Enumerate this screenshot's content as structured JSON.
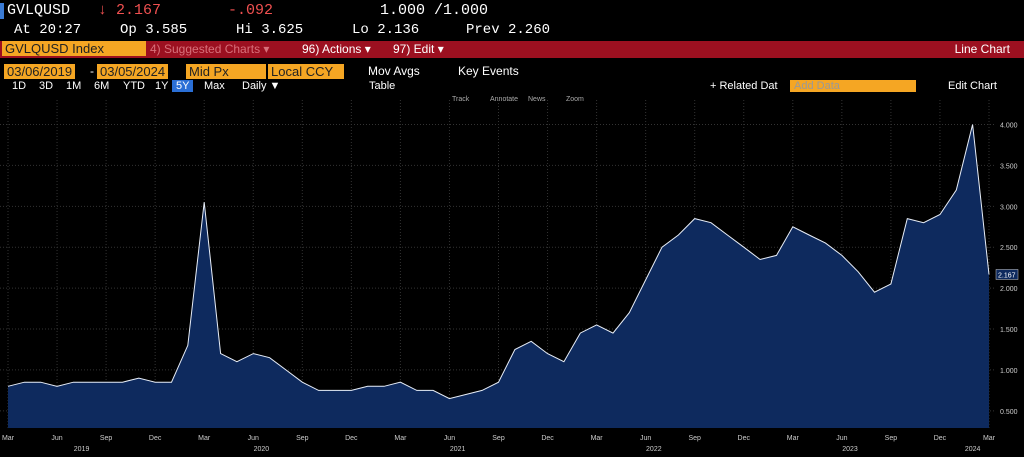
{
  "header": {
    "ticker": "GVLQUSD",
    "last": "↓ 2.167",
    "change": "-.092",
    "bid_ask": "1.000 /1.000",
    "time": "At 20:27",
    "open": "Op 3.585",
    "high": "Hi 3.625",
    "low": "Lo 2.136",
    "prev": "Prev 2.260"
  },
  "toolbar": {
    "security": "GVLQUSD Index",
    "suggested": "4) Suggested Charts ▾",
    "actions": "96) Actions ▾",
    "edit": "97) Edit ▾",
    "chart_kind": "Line Chart"
  },
  "settings": {
    "start": "03/06/2019",
    "dash": "-",
    "end": "03/05/2024",
    "price": "Mid Px",
    "currency": "Local CCY",
    "mov_avgs": "Mov Avgs",
    "key_events": "Key Events"
  },
  "periods": [
    "1D",
    "3D",
    "1M",
    "6M",
    "YTD",
    "1Y",
    "5Y",
    "Max"
  ],
  "frequency": "Daily ▼",
  "table": "Table",
  "related": "+ Related Dat",
  "add_data": "Add Data",
  "edit_chart": "Edit Chart",
  "chart_tools": [
    "Track",
    "Annotate",
    "News",
    "Zoom"
  ],
  "chart_data": {
    "type": "area",
    "color": "#0e2a5e",
    "line_color": "#e8eef8",
    "grid": true,
    "x": [
      "2019-03",
      "2019-04",
      "2019-05",
      "2019-06",
      "2019-07",
      "2019-08",
      "2019-09",
      "2019-10",
      "2019-11",
      "2019-12",
      "2020-01",
      "2020-02",
      "2020-03",
      "2020-04",
      "2020-05",
      "2020-06",
      "2020-07",
      "2020-08",
      "2020-09",
      "2020-10",
      "2020-11",
      "2020-12",
      "2021-01",
      "2021-02",
      "2021-03",
      "2021-04",
      "2021-05",
      "2021-06",
      "2021-07",
      "2021-08",
      "2021-09",
      "2021-10",
      "2021-11",
      "2021-12",
      "2022-01",
      "2022-02",
      "2022-03",
      "2022-04",
      "2022-05",
      "2022-06",
      "2022-07",
      "2022-08",
      "2022-09",
      "2022-10",
      "2022-11",
      "2022-12",
      "2023-01",
      "2023-02",
      "2023-03",
      "2023-04",
      "2023-05",
      "2023-06",
      "2023-07",
      "2023-08",
      "2023-09",
      "2023-10",
      "2023-11",
      "2023-12",
      "2024-01",
      "2024-02",
      "2024-03"
    ],
    "values": [
      0.8,
      0.85,
      0.85,
      0.8,
      0.85,
      0.85,
      0.85,
      0.85,
      0.9,
      0.85,
      0.85,
      1.3,
      3.05,
      1.2,
      1.1,
      1.2,
      1.15,
      1.0,
      0.85,
      0.75,
      0.75,
      0.75,
      0.8,
      0.8,
      0.85,
      0.75,
      0.75,
      0.65,
      0.7,
      0.75,
      0.85,
      1.25,
      1.35,
      1.2,
      1.1,
      1.45,
      1.55,
      1.45,
      1.7,
      2.1,
      2.5,
      2.65,
      2.85,
      2.8,
      2.65,
      2.5,
      2.35,
      2.4,
      2.75,
      2.65,
      2.55,
      2.4,
      2.2,
      1.95,
      2.05,
      2.85,
      2.8,
      2.9,
      3.2,
      4.0,
      2.167
    ],
    "ylim": [
      0.29,
      4.3
    ],
    "yticks": [
      {
        "value": 0.5,
        "label": "0.500"
      },
      {
        "value": 1,
        "label": "1.000"
      },
      {
        "value": 1.5,
        "label": "1.500"
      },
      {
        "value": 2,
        "label": "2.000"
      },
      {
        "value": 2.5,
        "label": "2.500"
      },
      {
        "value": 3,
        "label": "3.000"
      },
      {
        "value": 3.5,
        "label": "3.500"
      },
      {
        "value": 4,
        "label": "4.000"
      }
    ],
    "xticks": [
      {
        "value": "2019-03",
        "label": "Mar"
      },
      {
        "value": "2019-06",
        "label": "Jun"
      },
      {
        "value": "2019-09",
        "label": "Sep"
      },
      {
        "value": "2019-12",
        "label": "Dec"
      },
      {
        "value": "2020-03",
        "label": "Mar"
      },
      {
        "value": "2020-06",
        "label": "Jun"
      },
      {
        "value": "2020-09",
        "label": "Sep"
      },
      {
        "value": "2020-12",
        "label": "Dec"
      },
      {
        "value": "2021-03",
        "label": "Mar"
      },
      {
        "value": "2021-06",
        "label": "Jun"
      },
      {
        "value": "2021-09",
        "label": "Sep"
      },
      {
        "value": "2021-12",
        "label": "Dec"
      },
      {
        "value": "2022-03",
        "label": "Mar"
      },
      {
        "value": "2022-06",
        "label": "Jun"
      },
      {
        "value": "2022-09",
        "label": "Sep"
      },
      {
        "value": "2022-12",
        "label": "Dec"
      },
      {
        "value": "2023-03",
        "label": "Mar"
      },
      {
        "value": "2023-06",
        "label": "Jun"
      },
      {
        "value": "2023-09",
        "label": "Sep"
      },
      {
        "value": "2023-12",
        "label": "Dec"
      },
      {
        "value": "2024-03",
        "label": "Mar"
      }
    ],
    "years": [
      "2019",
      "2020",
      "2021",
      "2022",
      "2023",
      "2024"
    ]
  }
}
